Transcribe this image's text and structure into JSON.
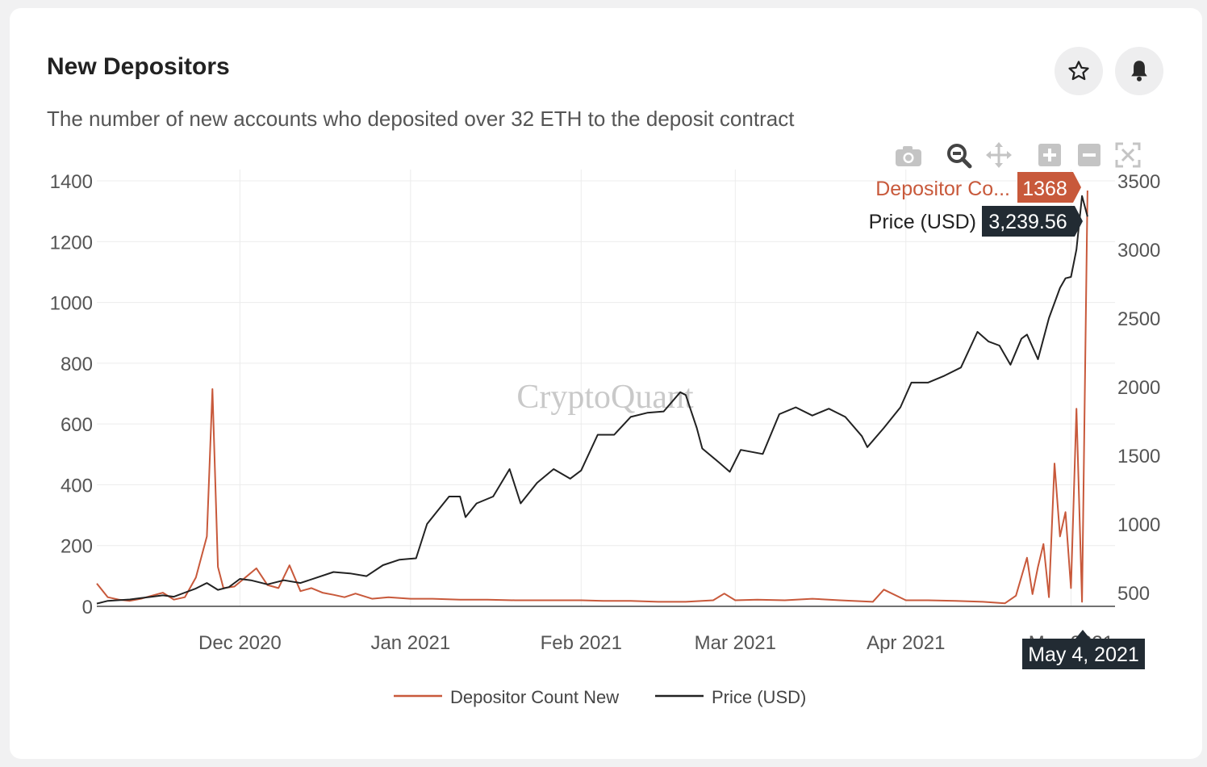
{
  "card": {
    "title": "New Depositors",
    "subtitle": "The number of new accounts who deposited over 32 ETH to the deposit contract"
  },
  "header_icons": [
    "star-icon",
    "bell-icon"
  ],
  "toolbar_icons": [
    "camera-icon",
    "zoom-icon",
    "pan-icon",
    "zoom-in-icon",
    "zoom-out-icon",
    "autoscale-icon"
  ],
  "watermark": "CryptoQuant",
  "chart_data": {
    "type": "line",
    "title": "",
    "grid": true,
    "legend_position": "bottom",
    "x_ticks": [
      "Dec 2020",
      "Jan 2021",
      "Feb 2021",
      "Mar 2021",
      "Apr 2021",
      "May 2021"
    ],
    "x_tick_dates": [
      "2020-12-01",
      "2021-01-01",
      "2021-02-01",
      "2021-03-01",
      "2021-04-01",
      "2021-05-01"
    ],
    "xlim": [
      "2020-11-05",
      "2021-05-09"
    ],
    "y_left": {
      "range": [
        0,
        1400
      ],
      "ticks": [
        "0",
        "200",
        "400",
        "600",
        "800",
        "1000",
        "1200",
        "1400"
      ]
    },
    "y_right": {
      "range": [
        400,
        3500
      ],
      "ticks": [
        "500",
        "1000",
        "1500",
        "2000",
        "2500",
        "3000",
        "3500"
      ]
    },
    "series": [
      {
        "name": "Depositor Count New",
        "color": "#c8593b",
        "axis": "left",
        "x": [
          "2020-11-05",
          "2020-11-07",
          "2020-11-09",
          "2020-11-11",
          "2020-11-13",
          "2020-11-15",
          "2020-11-17",
          "2020-11-19",
          "2020-11-21",
          "2020-11-23",
          "2020-11-25",
          "2020-11-26",
          "2020-11-27",
          "2020-11-28",
          "2020-11-30",
          "2020-12-02",
          "2020-12-04",
          "2020-12-06",
          "2020-12-08",
          "2020-12-10",
          "2020-12-12",
          "2020-12-14",
          "2020-12-16",
          "2020-12-18",
          "2020-12-20",
          "2020-12-22",
          "2020-12-25",
          "2020-12-28",
          "2021-01-01",
          "2021-01-05",
          "2021-01-10",
          "2021-01-15",
          "2021-01-20",
          "2021-01-25",
          "2021-02-01",
          "2021-02-05",
          "2021-02-10",
          "2021-02-15",
          "2021-02-20",
          "2021-02-25",
          "2021-02-27",
          "2021-03-01",
          "2021-03-05",
          "2021-03-10",
          "2021-03-15",
          "2021-03-20",
          "2021-03-26",
          "2021-03-28",
          "2021-04-01",
          "2021-04-05",
          "2021-04-10",
          "2021-04-15",
          "2021-04-19",
          "2021-04-21",
          "2021-04-23",
          "2021-04-24",
          "2021-04-25",
          "2021-04-26",
          "2021-04-27",
          "2021-04-28",
          "2021-04-29",
          "2021-04-30",
          "2021-05-01",
          "2021-05-02",
          "2021-05-03",
          "2021-05-04"
        ],
        "y": [
          75,
          30,
          22,
          18,
          25,
          35,
          45,
          22,
          30,
          95,
          230,
          715,
          130,
          60,
          65,
          95,
          125,
          70,
          60,
          135,
          50,
          60,
          45,
          38,
          30,
          42,
          25,
          30,
          25,
          25,
          22,
          22,
          20,
          20,
          20,
          18,
          18,
          15,
          15,
          20,
          42,
          20,
          22,
          20,
          25,
          20,
          15,
          55,
          20,
          20,
          18,
          15,
          10,
          35,
          160,
          40,
          130,
          205,
          30,
          470,
          230,
          310,
          60,
          650,
          15,
          1368
        ]
      },
      {
        "name": "Price (USD)",
        "color": "#222222",
        "axis": "right",
        "x": [
          "2020-11-05",
          "2020-11-07",
          "2020-11-09",
          "2020-11-11",
          "2020-11-13",
          "2020-11-15",
          "2020-11-17",
          "2020-11-19",
          "2020-11-21",
          "2020-11-23",
          "2020-11-25",
          "2020-11-27",
          "2020-11-29",
          "2020-12-01",
          "2020-12-03",
          "2020-12-06",
          "2020-12-09",
          "2020-12-12",
          "2020-12-15",
          "2020-12-18",
          "2020-12-21",
          "2020-12-24",
          "2020-12-27",
          "2020-12-30",
          "2021-01-02",
          "2021-01-04",
          "2021-01-06",
          "2021-01-08",
          "2021-01-10",
          "2021-01-11",
          "2021-01-13",
          "2021-01-16",
          "2021-01-19",
          "2021-01-21",
          "2021-01-24",
          "2021-01-27",
          "2021-01-30",
          "2021-02-01",
          "2021-02-04",
          "2021-02-07",
          "2021-02-10",
          "2021-02-13",
          "2021-02-16",
          "2021-02-19",
          "2021-02-20",
          "2021-02-22",
          "2021-02-23",
          "2021-02-26",
          "2021-02-28",
          "2021-03-02",
          "2021-03-06",
          "2021-03-09",
          "2021-03-12",
          "2021-03-15",
          "2021-03-18",
          "2021-03-21",
          "2021-03-24",
          "2021-03-25",
          "2021-03-28",
          "2021-03-31",
          "2021-04-02",
          "2021-04-05",
          "2021-04-08",
          "2021-04-11",
          "2021-04-14",
          "2021-04-16",
          "2021-04-18",
          "2021-04-20",
          "2021-04-22",
          "2021-04-23",
          "2021-04-25",
          "2021-04-27",
          "2021-04-29",
          "2021-04-30",
          "2021-05-01",
          "2021-05-02",
          "2021-05-03",
          "2021-05-04"
        ],
        "y": [
          420,
          440,
          445,
          450,
          460,
          470,
          480,
          470,
          500,
          530,
          570,
          520,
          540,
          600,
          590,
          560,
          590,
          570,
          610,
          650,
          640,
          620,
          700,
          740,
          750,
          1000,
          1100,
          1200,
          1200,
          1050,
          1150,
          1200,
          1400,
          1150,
          1300,
          1400,
          1330,
          1390,
          1650,
          1650,
          1780,
          1810,
          1820,
          1960,
          1940,
          1700,
          1550,
          1450,
          1380,
          1540,
          1510,
          1800,
          1850,
          1790,
          1840,
          1780,
          1640,
          1560,
          1700,
          1850,
          2030,
          2030,
          2080,
          2140,
          2400,
          2330,
          2300,
          2160,
          2350,
          2380,
          2200,
          2500,
          2720,
          2790,
          2800,
          3000,
          3390,
          3240
        ]
      }
    ],
    "hover": {
      "date": "May 4, 2021",
      "series_label": "Depositor Co...",
      "series_value": "1368",
      "price_label": "Price (USD)",
      "price_value": "3,239.56"
    }
  }
}
